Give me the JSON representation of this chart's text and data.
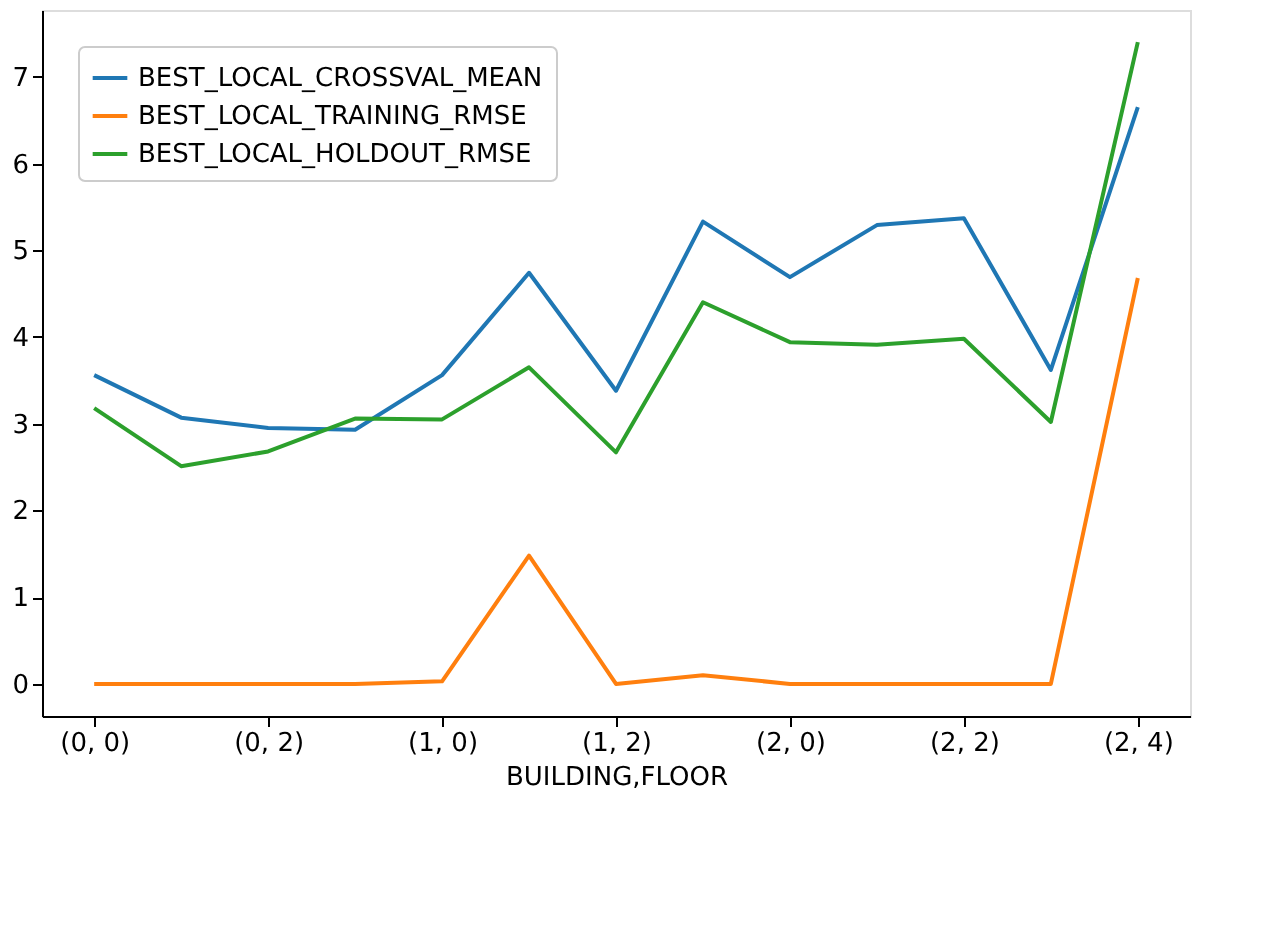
{
  "chart_data": {
    "type": "line",
    "xlabel": "BUILDING,FLOOR",
    "categories": [
      "(0, 0)",
      null,
      "(0, 2)",
      null,
      "(1, 0)",
      null,
      "(1, 2)",
      null,
      "(2, 0)",
      null,
      "(2, 2)",
      null,
      "(2, 4)"
    ],
    "series": [
      {
        "name": "BEST_LOCAL_CROSSVAL_MEAN",
        "color": "#1f77b4",
        "values": [
          3.56,
          3.07,
          2.95,
          2.93,
          3.56,
          4.74,
          3.38,
          5.33,
          4.69,
          5.29,
          5.37,
          3.62,
          6.65
        ]
      },
      {
        "name": "BEST_LOCAL_TRAINING_RMSE",
        "color": "#ff7f0e",
        "values": [
          0,
          0,
          0,
          0,
          0.03,
          1.48,
          0,
          0.1,
          0,
          0,
          0,
          0,
          4.68
        ]
      },
      {
        "name": "BEST_LOCAL_HOLDOUT_RMSE",
        "color": "#2ca02c",
        "values": [
          3.18,
          2.51,
          2.68,
          3.06,
          3.05,
          3.65,
          2.67,
          4.4,
          3.94,
          3.91,
          3.98,
          3.02,
          7.4
        ]
      }
    ],
    "ylim": [
      -0.37,
      7.77
    ],
    "yticks": [
      0,
      1,
      2,
      3,
      4,
      5,
      6,
      7
    ],
    "grid": false,
    "legend": "top left",
    "marker": "none",
    "line_style": "solid"
  }
}
